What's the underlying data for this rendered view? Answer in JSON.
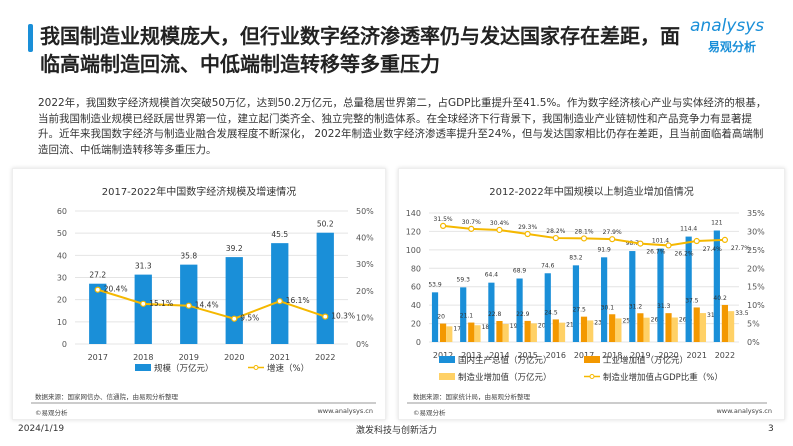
{
  "header": {
    "title": "我国制造业规模庞大，但行业数字经济渗透率仍与发达国家存在差距，面临高端制造回流、中低端制造转移等多重压力",
    "logo_en": "analysys",
    "logo_cn": "易观分析"
  },
  "intro": "2022年，我国数字经济规模首次突破50万亿，达到50.2万亿元，总量稳居世界第二，占GDP比重提升至41.5%。作为数字经济核心产业与实体经济的根基，当前我国制造业规模已经跃居世界第一位，建立起门类齐全、独立完整的制造体系。在全球经济下行背景下，我国制造业产业链韧性和产品竞争力有显著提升。近年来我国数字经济与制造业融合发展程度不断深化， 2022年制造业数字经济渗透率提升至24%，但与发达国家相比仍存在差距，且当前面临着高端制造回流、中低端制造转移等多重压力。",
  "footer": {
    "date": "2024/1/19",
    "slogan": "激发科技与创新活力",
    "page": "3"
  },
  "colors": {
    "blue": "#1a8fd8",
    "orange": "#f39800",
    "light_orange": "#ffd166",
    "line": "#f5b800"
  },
  "chart_data": [
    {
      "type": "bar",
      "title": "2017-2022年中国数字经济规模及增速情况",
      "categories": [
        "2017",
        "2018",
        "2019",
        "2020",
        "2021",
        "2022"
      ],
      "series": [
        {
          "name": "规模（万亿元）",
          "type": "bar",
          "axis": "left",
          "values": [
            27.2,
            31.3,
            35.8,
            39.2,
            45.5,
            50.2
          ]
        },
        {
          "name": "增速（%）",
          "type": "line",
          "axis": "right",
          "values": [
            20.4,
            15.1,
            14.4,
            9.5,
            16.1,
            10.3
          ]
        }
      ],
      "ylim": [
        0,
        60
      ],
      "yticks": [
        "0",
        "10",
        "20",
        "30",
        "40",
        "50",
        "60"
      ],
      "y2lim": [
        0,
        50
      ],
      "y2ticks": [
        "0%",
        "10%",
        "20%",
        "30%",
        "40%",
        "50%"
      ],
      "grid": true,
      "legend": "bottom",
      "source": "数据来源：国家网信办、信通院，由易观分析整理",
      "copyright": "©易观分析",
      "site": "www.analysys.cn"
    },
    {
      "type": "bar",
      "title": "2012-2022年中国规模以上制造业增加值情况",
      "categories": [
        "2012",
        "2013",
        "2014",
        "2015",
        "2016",
        "2017",
        "2018",
        "2019",
        "2020",
        "2021",
        "2022"
      ],
      "series": [
        {
          "name": "国内生产总值（万亿元）",
          "type": "bar",
          "axis": "left",
          "values": [
            53.9,
            59.3,
            64.4,
            68.9,
            74.6,
            83.2,
            91.9,
            98.7,
            101.4,
            114.4,
            121
          ]
        },
        {
          "name": "工业增加值（万亿元）",
          "type": "bar",
          "axis": "left",
          "values": [
            20,
            21.1,
            22.8,
            22.9,
            24.5,
            27.5,
            30.1,
            31.2,
            31.3,
            37.5,
            40.2
          ]
        },
        {
          "name": "制造业增加值（万亿元）",
          "type": "bar",
          "axis": "left",
          "values": [
            17,
            18.2,
            19.6,
            20.2,
            21,
            23.4,
            25.6,
            26.4,
            26.6,
            31.4,
            33.5
          ]
        },
        {
          "name": "制造业增加值占GDP比重（%）",
          "type": "line",
          "axis": "right",
          "values": [
            31.5,
            30.7,
            30.4,
            29.3,
            28.2,
            28.1,
            27.9,
            26.7,
            26.2,
            27.4,
            27.7
          ]
        }
      ],
      "ylim": [
        0,
        140
      ],
      "yticks": [
        "0",
        "20",
        "40",
        "60",
        "80",
        "100",
        "120",
        "140"
      ],
      "y2lim": [
        0,
        35
      ],
      "y2ticks": [
        "0%",
        "5%",
        "10%",
        "15%",
        "20%",
        "25%",
        "30%",
        "35%"
      ],
      "grid": true,
      "legend": "bottom",
      "source": "数据来源：国家统计局，由易观分析整理",
      "copyright": "©易观分析",
      "site": "www.analysys.cn"
    }
  ]
}
